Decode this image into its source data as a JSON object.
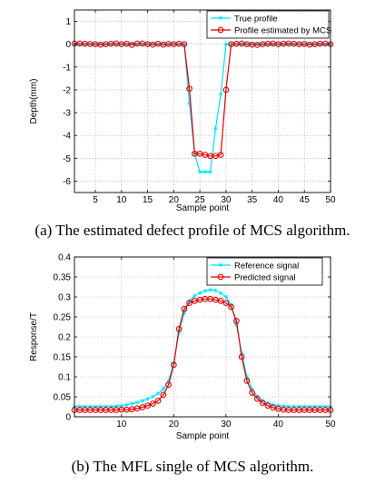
{
  "captions": {
    "a": "(a) The estimated defect profile of MCS algorithm.",
    "b": "(b) The MFL single of MCS algorithm."
  },
  "chart_data": [
    {
      "type": "line",
      "xlabel": "Sample point",
      "ylabel": "Depth(mm)",
      "xlim": [
        1,
        50
      ],
      "ylim": [
        -6.5,
        1.5
      ],
      "xticks": [
        5,
        10,
        15,
        20,
        25,
        30,
        35,
        40,
        45,
        50
      ],
      "yticks": [
        1,
        0,
        -1,
        -2,
        -3,
        -4,
        -5,
        -6
      ],
      "grid": true,
      "legend_position": "top-right",
      "x": [
        1,
        2,
        3,
        4,
        5,
        6,
        7,
        8,
        9,
        10,
        11,
        12,
        13,
        14,
        15,
        16,
        17,
        18,
        19,
        20,
        21,
        22,
        23,
        24,
        25,
        26,
        27,
        28,
        29,
        30,
        31,
        32,
        33,
        34,
        35,
        36,
        37,
        38,
        39,
        40,
        41,
        42,
        43,
        44,
        45,
        46,
        47,
        48,
        49,
        50
      ],
      "series": [
        {
          "name": "True profile",
          "color": "#00e0ff",
          "marker": "star",
          "values": [
            0,
            0,
            0,
            0,
            0,
            0,
            0,
            0,
            0,
            0,
            0,
            0,
            0,
            0,
            0,
            0,
            0,
            0,
            0,
            0,
            0,
            0,
            -2.6,
            -4.8,
            -5.6,
            -5.6,
            -5.6,
            -3.7,
            -2.2,
            0,
            0,
            0,
            0,
            0,
            0,
            0,
            0,
            0,
            0,
            0,
            0,
            0,
            0,
            0,
            0,
            0,
            0,
            0,
            0,
            0
          ]
        },
        {
          "name": "Profile estimated by MCS",
          "color": "#e00000",
          "marker": "circle",
          "values": [
            0.03,
            0.03,
            0.02,
            0.01,
            0.0,
            -0.02,
            0.0,
            0.02,
            0.03,
            0.0,
            0.02,
            -0.03,
            0.03,
            0.03,
            0.0,
            -0.02,
            0.02,
            -0.02,
            0.01,
            0.0,
            0.02,
            0.0,
            -1.95,
            -4.8,
            -4.8,
            -4.85,
            -4.9,
            -4.9,
            -4.85,
            -2.0,
            0.0,
            0.02,
            0.03,
            0.0,
            -0.02,
            -0.03,
            0.0,
            0.02,
            0.03,
            0.0,
            0.02,
            0.03,
            0.02,
            0.0,
            0.01,
            -0.02,
            0.0,
            0.02,
            0.03,
            0.0
          ]
        }
      ]
    },
    {
      "type": "line",
      "xlabel": "Sample point",
      "ylabel": "Response/T",
      "xlim": [
        1,
        50
      ],
      "ylim": [
        0,
        0.4
      ],
      "xticks": [
        10,
        20,
        30,
        40,
        50
      ],
      "yticks": [
        0.4,
        0.35,
        0.3,
        0.25,
        0.2,
        0.15,
        0.1,
        0.05,
        0
      ],
      "grid": true,
      "legend_position": "top-right",
      "x": [
        1,
        2,
        3,
        4,
        5,
        6,
        7,
        8,
        9,
        10,
        11,
        12,
        13,
        14,
        15,
        16,
        17,
        18,
        19,
        20,
        21,
        22,
        23,
        24,
        25,
        26,
        27,
        28,
        29,
        30,
        31,
        32,
        33,
        34,
        35,
        36,
        37,
        38,
        39,
        40,
        41,
        42,
        43,
        44,
        45,
        46,
        47,
        48,
        49,
        50
      ],
      "series": [
        {
          "name": "Reference signal",
          "color": "#00e0ff",
          "marker": "star",
          "values": [
            0.026,
            0.026,
            0.026,
            0.026,
            0.026,
            0.026,
            0.026,
            0.026,
            0.027,
            0.028,
            0.03,
            0.033,
            0.036,
            0.04,
            0.045,
            0.05,
            0.058,
            0.07,
            0.09,
            0.135,
            0.21,
            0.26,
            0.29,
            0.303,
            0.31,
            0.315,
            0.318,
            0.316,
            0.31,
            0.3,
            0.28,
            0.23,
            0.16,
            0.1,
            0.07,
            0.05,
            0.04,
            0.035,
            0.03,
            0.028,
            0.027,
            0.026,
            0.026,
            0.026,
            0.026,
            0.026,
            0.026,
            0.026,
            0.026,
            0.026
          ]
        },
        {
          "name": "Predicted signal",
          "color": "#e00000",
          "marker": "circle",
          "values": [
            0.017,
            0.017,
            0.017,
            0.017,
            0.017,
            0.017,
            0.017,
            0.017,
            0.017,
            0.018,
            0.018,
            0.019,
            0.021,
            0.024,
            0.028,
            0.033,
            0.04,
            0.055,
            0.08,
            0.13,
            0.22,
            0.27,
            0.285,
            0.29,
            0.293,
            0.295,
            0.295,
            0.293,
            0.29,
            0.285,
            0.275,
            0.24,
            0.15,
            0.09,
            0.06,
            0.045,
            0.035,
            0.028,
            0.023,
            0.02,
            0.018,
            0.017,
            0.017,
            0.017,
            0.017,
            0.017,
            0.017,
            0.017,
            0.017,
            0.017
          ]
        }
      ]
    }
  ]
}
